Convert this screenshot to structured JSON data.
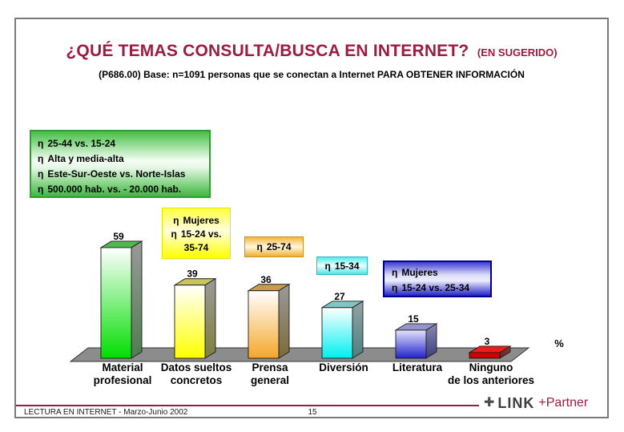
{
  "slide": {
    "title": "¿QUÉ TEMAS CONSULTA/BUSCA EN INTERNET?",
    "title_suffix": "(EN SUGERIDO)",
    "subtitle": "(P686.00) Base: n=1091 personas que se conectan a Internet PARA OBTENER INFORMACIÓN"
  },
  "bullet_char": "η",
  "annotations": {
    "green": {
      "lines": [
        "25-44 vs. 15-24",
        "Alta y media-alta",
        "Este-Sur-Oeste vs. Norte-Islas",
        "500.000 hab. vs. - 20.000 hab."
      ]
    },
    "yellow_datos": {
      "lines": [
        "Mujeres",
        "15-24 vs.",
        "35-74"
      ],
      "bulleted": [
        true,
        true,
        false
      ]
    },
    "yellow_prensa": {
      "lines": [
        "25-74"
      ]
    },
    "cyan_diversion": {
      "lines": [
        "15-34"
      ]
    },
    "blue_literatura": {
      "lines": [
        "Mujeres",
        "15-24 vs. 25-34"
      ]
    }
  },
  "chart_data": {
    "type": "bar",
    "title": "¿QUÉ TEMAS CONSULTA/BUSCA EN INTERNET? (EN SUGERIDO)",
    "subtitle": "(P686.00) Base: n=1091 personas que se conectan a Internet PARA OBTENER INFORMACIÓN",
    "unit_label": "%",
    "categories": [
      [
        "Material",
        "profesional"
      ],
      [
        "Datos sueltos",
        "concretos"
      ],
      [
        "Prensa",
        "general"
      ],
      [
        "Diversión"
      ],
      [
        "Literatura"
      ],
      [
        "Ninguno",
        "de los anteriores"
      ]
    ],
    "values": [
      59,
      39,
      36,
      27,
      15,
      3
    ],
    "ylim": [
      0,
      60
    ],
    "grid": false,
    "legend": "none",
    "style": "3d-bars",
    "bar_colors": [
      {
        "front_top": "#FFFFFF",
        "front_bottom": "#00DE00",
        "top": "#4CBA4C",
        "side_top": "#9A9A9A",
        "side_bottom": "#4E7E4E"
      },
      {
        "front_top": "#FFFFFF",
        "front_bottom": "#FFFF00",
        "top": "#C6C65A",
        "side_top": "#9A9A9A",
        "side_bottom": "#80803C"
      },
      {
        "front_top": "#FFFFFF",
        "front_bottom": "#F4A72A",
        "top": "#C79C4E",
        "side_top": "#9A9A9A",
        "side_bottom": "#7E6A38"
      },
      {
        "front_top": "#FFFFFF",
        "front_bottom": "#00EFEF",
        "top": "#7FC6C6",
        "side_top": "#93A3A3",
        "side_bottom": "#4E8080"
      },
      {
        "front_top": "#E4E4FD",
        "front_bottom": "#2222CC",
        "top": "#9595CB",
        "side_top": "#8A8AB0",
        "side_bottom": "#3C3C80"
      },
      {
        "front_top": "#E00000",
        "front_bottom": "#BE0000",
        "top": "#EE1C1C",
        "side_top": "#8A4040",
        "side_bottom": "#701818"
      }
    ],
    "floor_color": "#8C8C8C"
  },
  "footer": {
    "left": "LECTURA EN INTERNET - Marzo-Junio 2002",
    "page_number": "15",
    "logo_glyph": "✚",
    "logo_link": "LINK",
    "logo_partner": "+Partner"
  },
  "colors": {
    "accent_maroon": "#9E1B42",
    "title_color": "#9E1B42",
    "slide_border": "#7A7A7A"
  }
}
